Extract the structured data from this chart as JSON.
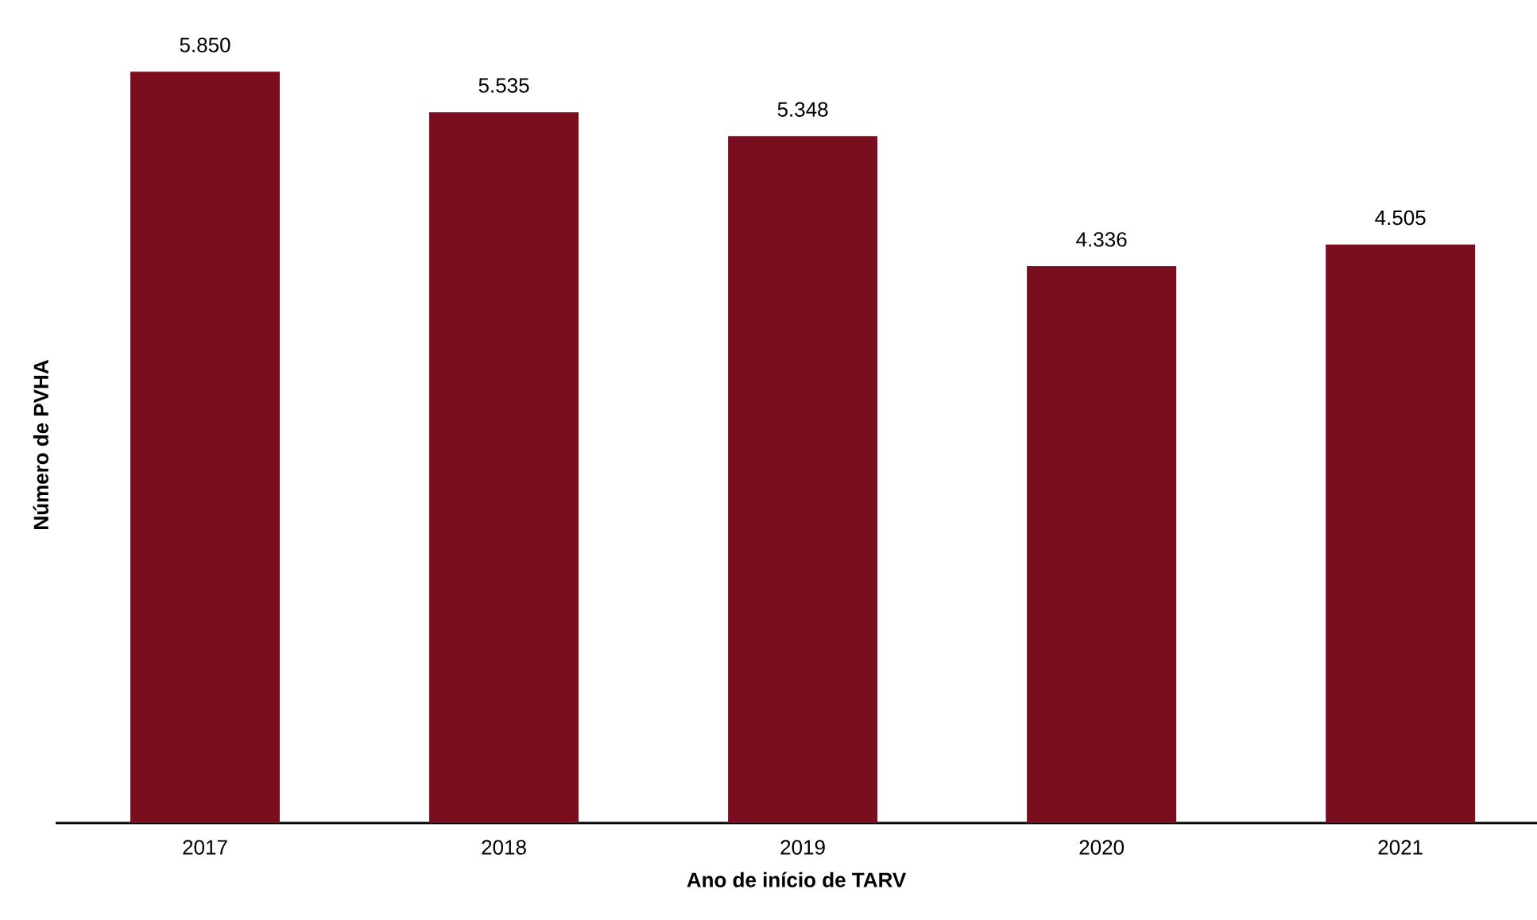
{
  "chart_data": {
    "type": "bar",
    "xlabel": "Ano de início de TARV",
    "ylabel": "Número de PVHA",
    "categories": [
      "2017",
      "2018",
      "2019",
      "2020",
      "2021"
    ],
    "values": [
      5850,
      5535,
      5348,
      4336,
      4505
    ],
    "value_labels": [
      "5.850",
      "5.535",
      "5.348",
      "4.336",
      "4.505"
    ],
    "color": "#7a0e1e"
  }
}
